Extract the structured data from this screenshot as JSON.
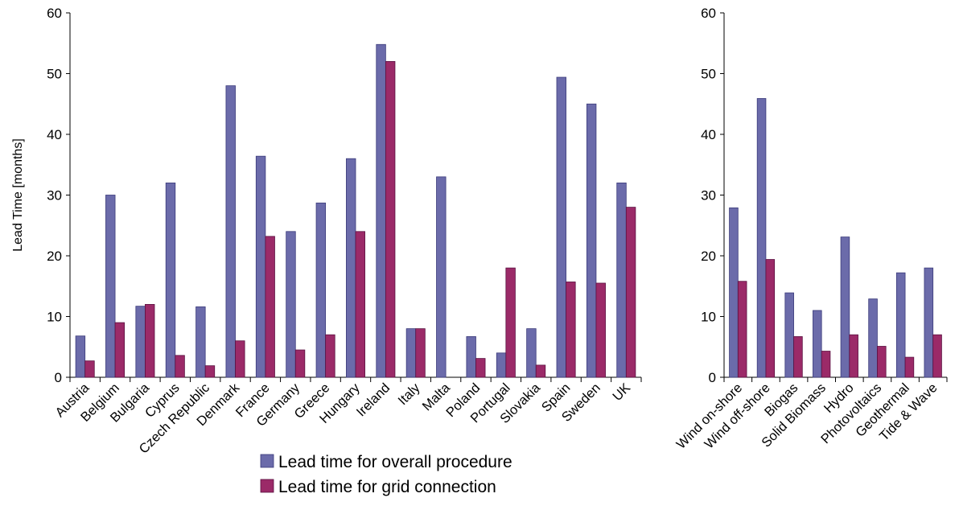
{
  "series_names": [
    "Lead time for overall procedure",
    "Lead time for grid connection"
  ],
  "colors": {
    "overall": "#6b6baa",
    "overall_edge": "#3a3a7a",
    "grid": "#9b2a68",
    "grid_edge": "#5a1040"
  },
  "chart_data": [
    {
      "type": "bar",
      "ylabel": "Lead Time [months]",
      "ylim": [
        0,
        60
      ],
      "yticks": [
        0,
        10,
        20,
        30,
        40,
        50,
        60
      ],
      "grid": false,
      "legend": "bottom",
      "categories": [
        "Austria",
        "Belgium",
        "Bulgaria",
        "Cyprus",
        "Czech Republic",
        "Denmark",
        "France",
        "Germany",
        "Greece",
        "Hungary",
        "Ireland",
        "Italy",
        "Malta",
        "Poland",
        "Portugal",
        "Slovakia",
        "Spain",
        "Sweden",
        "UK"
      ],
      "series": [
        {
          "name": "Lead time for overall procedure",
          "values": [
            6.8,
            30,
            11.7,
            32,
            11.6,
            48,
            36.4,
            24,
            28.7,
            36,
            54.8,
            8,
            33,
            6.7,
            4,
            8,
            49.4,
            45,
            32
          ]
        },
        {
          "name": "Lead time for grid connection",
          "values": [
            2.7,
            9,
            12,
            3.6,
            1.9,
            6,
            23.2,
            4.5,
            7,
            24,
            52,
            8,
            0,
            3.1,
            18,
            2,
            15.7,
            15.5,
            28
          ]
        }
      ]
    },
    {
      "type": "bar",
      "ylim": [
        0,
        60
      ],
      "yticks": [
        0,
        10,
        20,
        30,
        40,
        50,
        60
      ],
      "grid": false,
      "categories": [
        "Wind on-shore",
        "Wind off-shore",
        "Biogas",
        "Solid Biomass",
        "Hydro",
        "Photovoltaics",
        "Geothermal",
        "Tide & Wave"
      ],
      "series": [
        {
          "name": "Lead time for overall procedure",
          "values": [
            27.9,
            45.9,
            13.9,
            11,
            23.1,
            12.9,
            17.2,
            18
          ]
        },
        {
          "name": "Lead time for grid connection",
          "values": [
            15.8,
            19.4,
            6.7,
            4.3,
            7,
            5.1,
            3.3,
            7
          ]
        }
      ]
    }
  ]
}
